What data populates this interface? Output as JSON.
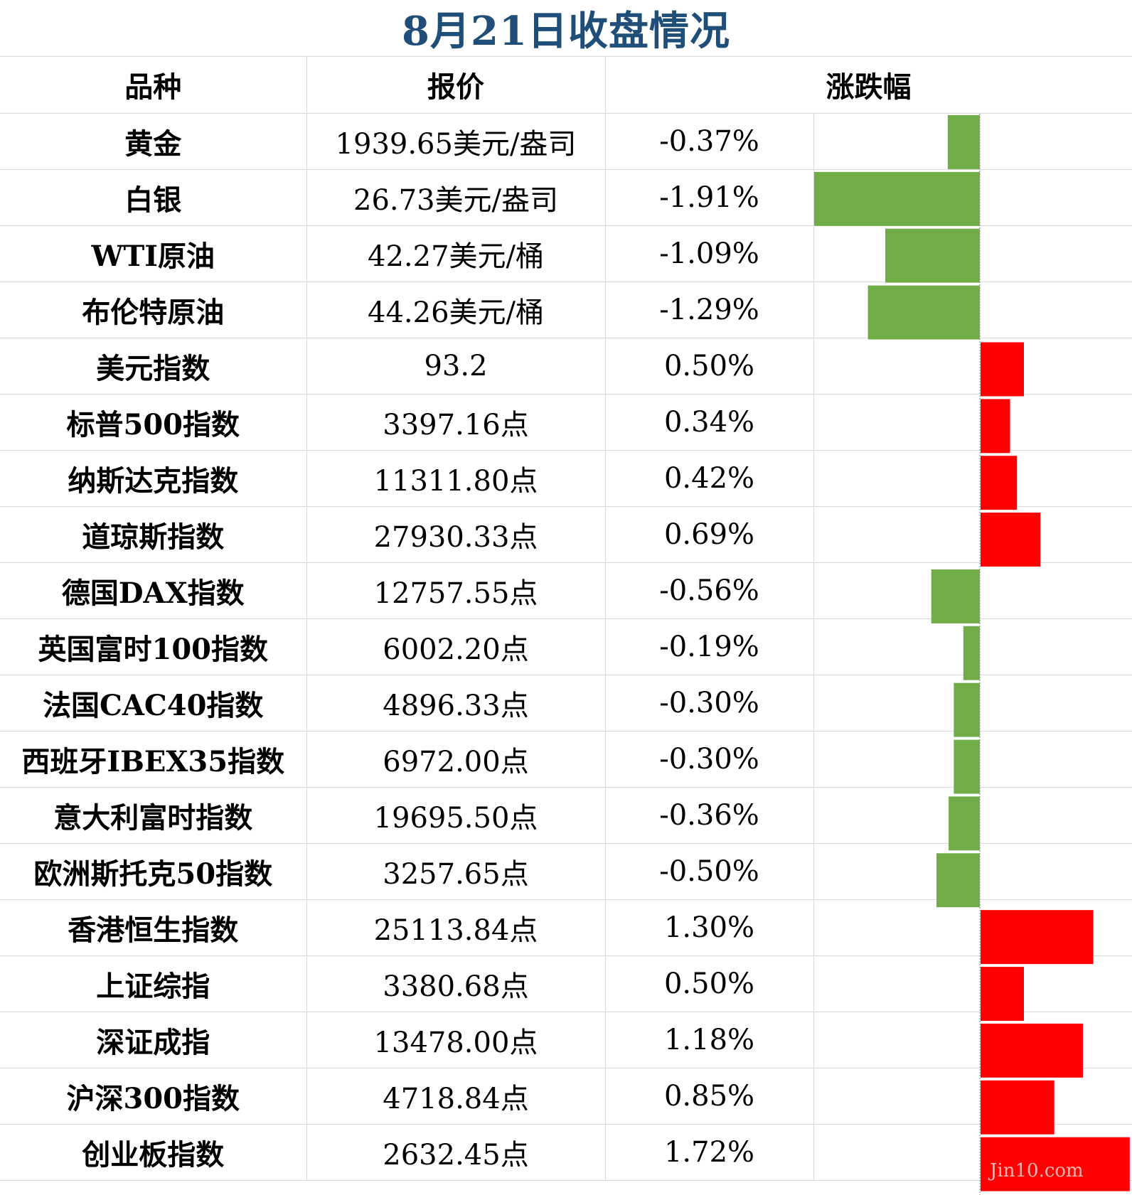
{
  "title": "8月21日收盘情况",
  "headers": {
    "name": "品种",
    "price": "报价",
    "change": "涨跌幅"
  },
  "colors": {
    "up": "#ff0000",
    "down": "#70ad47",
    "title": "#1f4e79",
    "grid": "#d9d9d9"
  },
  "watermark": "Jin10.com",
  "rows": [
    {
      "name": "黄金",
      "price": "1939.65美元/盎司",
      "change": "-0.37%"
    },
    {
      "name": "白银",
      "price": "26.73美元/盎司",
      "change": "-1.91%"
    },
    {
      "name": "WTI原油",
      "price": "42.27美元/桶",
      "change": "-1.09%"
    },
    {
      "name": "布伦特原油",
      "price": "44.26美元/桶",
      "change": "-1.29%"
    },
    {
      "name": "美元指数",
      "price": "93.2",
      "change": "0.50%"
    },
    {
      "name": "标普500指数",
      "price": "3397.16点",
      "change": "0.34%"
    },
    {
      "name": "纳斯达克指数",
      "price": "11311.80点",
      "change": "0.42%"
    },
    {
      "name": "道琼斯指数",
      "price": "27930.33点",
      "change": "0.69%"
    },
    {
      "name": "德国DAX指数",
      "price": "12757.55点",
      "change": "-0.56%"
    },
    {
      "name": "英国富时100指数",
      "price": "6002.20点",
      "change": "-0.19%"
    },
    {
      "name": "法国CAC40指数",
      "price": "4896.33点",
      "change": "-0.30%"
    },
    {
      "name": "西班牙IBEX35指数",
      "price": "6972.00点",
      "change": "-0.30%"
    },
    {
      "name": "意大利富时指数",
      "price": "19695.50点",
      "change": "-0.36%"
    },
    {
      "name": "欧洲斯托克50指数",
      "price": "3257.65点",
      "change": "-0.50%"
    },
    {
      "name": "香港恒生指数",
      "price": "25113.84点",
      "change": "1.30%"
    },
    {
      "name": "上证综指",
      "price": "3380.68点",
      "change": "0.50%"
    },
    {
      "name": "深证成指",
      "price": "13478.00点",
      "change": "1.18%"
    },
    {
      "name": "沪深300指数",
      "price": "4718.84点",
      "change": "0.85%"
    },
    {
      "name": "创业板指数",
      "price": "2632.45点",
      "change": "1.72%"
    }
  ],
  "chart_data": {
    "type": "bar",
    "orientation": "horizontal",
    "categories": [
      "黄金",
      "白银",
      "WTI原油",
      "布伦特原油",
      "美元指数",
      "标普500指数",
      "纳斯达克指数",
      "道琼斯指数",
      "德国DAX指数",
      "英国富时100指数",
      "法国CAC40指数",
      "西班牙IBEX35指数",
      "意大利富时指数",
      "欧洲斯托克50指数",
      "香港恒生指数",
      "上证综指",
      "深证成指",
      "沪深300指数",
      "创业板指数"
    ],
    "values": [
      -0.37,
      -1.91,
      -1.09,
      -1.29,
      0.5,
      0.34,
      0.42,
      0.69,
      -0.56,
      -0.19,
      -0.3,
      -0.3,
      -0.36,
      -0.5,
      1.3,
      0.5,
      1.18,
      0.85,
      1.72
    ],
    "unit": "%",
    "xlim": [
      -1.91,
      1.72
    ]
  }
}
